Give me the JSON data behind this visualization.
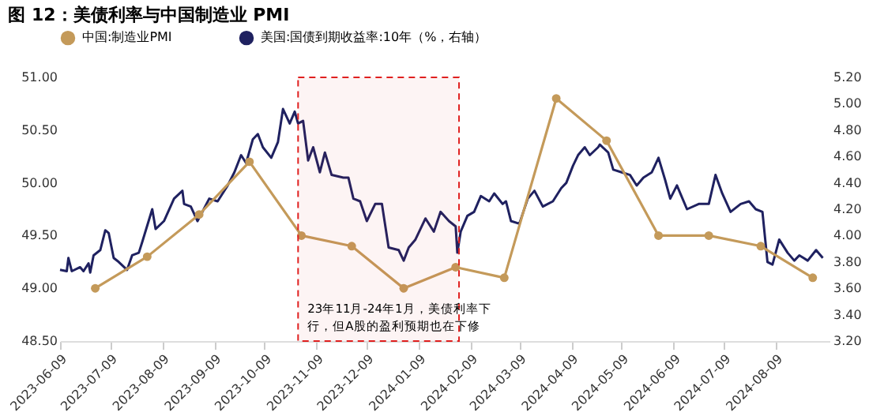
{
  "chart_data": {
    "type": "line",
    "title": "图 12：美债利率与中国制造业 PMI",
    "xlim": [
      "2023-06-09",
      "2024-09-10"
    ],
    "xticks": [
      "2023-06-09",
      "2023-07-09",
      "2023-08-09",
      "2023-09-09",
      "2023-10-09",
      "2023-11-09",
      "2023-12-09",
      "2024-01-09",
      "2024-02-09",
      "2024-03-09",
      "2024-04-09",
      "2024-05-09",
      "2024-06-09",
      "2024-07-09",
      "2024-08-09"
    ],
    "ylim": [
      48.5,
      51.0
    ],
    "yticks": [
      {
        "value": 48.5,
        "label": "48.50"
      },
      {
        "value": 49.0,
        "label": "49.00"
      },
      {
        "value": 49.5,
        "label": "49.50"
      },
      {
        "value": 50.0,
        "label": "50.00"
      },
      {
        "value": 50.5,
        "label": "50.50"
      },
      {
        "value": 51.0,
        "label": "51.00"
      }
    ],
    "y2lim": [
      3.2,
      5.2
    ],
    "y2ticks": [
      {
        "value": 3.2,
        "label": "3.20"
      },
      {
        "value": 3.4,
        "label": "3.40"
      },
      {
        "value": 3.6,
        "label": "3.60"
      },
      {
        "value": 3.8,
        "label": "3.80"
      },
      {
        "value": 4.0,
        "label": "4.00"
      },
      {
        "value": 4.2,
        "label": "4.20"
      },
      {
        "value": 4.4,
        "label": "4.40"
      },
      {
        "value": 4.6,
        "label": "4.60"
      },
      {
        "value": 4.8,
        "label": "4.80"
      },
      {
        "value": 5.0,
        "label": "5.00"
      },
      {
        "value": 5.2,
        "label": "5.20"
      }
    ],
    "legend": "top",
    "grid": false,
    "series": [
      {
        "name": "中国:制造业PMI",
        "color": "#c49a5a",
        "marker": "circle",
        "x": [
          "2023-06-30",
          "2023-07-31",
          "2023-08-31",
          "2023-09-30",
          "2023-10-31",
          "2023-11-30",
          "2023-12-31",
          "2024-01-31",
          "2024-02-29",
          "2024-03-31",
          "2024-04-30",
          "2024-05-31",
          "2024-06-30",
          "2024-07-31",
          "2024-08-31"
        ],
        "values": [
          49.0,
          49.3,
          49.7,
          50.2,
          49.5,
          49.4,
          49.0,
          49.2,
          49.1,
          50.8,
          50.4,
          49.5,
          49.5,
          49.4,
          49.1
        ]
      },
      {
        "name": "美国:国债到期收益率:10年（%，右轴）",
        "color": "#1f2160",
        "axis": "y2",
        "marker": "none",
        "x": [
          "2023-06-09",
          "2023-06-13",
          "2023-06-14",
          "2023-06-16",
          "2023-06-21",
          "2023-06-23",
          "2023-06-26",
          "2023-06-27",
          "2023-06-29",
          "2023-07-03",
          "2023-07-06",
          "2023-07-08",
          "2023-07-11",
          "2023-07-14",
          "2023-07-19",
          "2023-07-22",
          "2023-07-26",
          "2023-07-28",
          "2023-08-03",
          "2023-08-05",
          "2023-08-10",
          "2023-08-16",
          "2023-08-21",
          "2023-08-22",
          "2023-08-26",
          "2023-08-30",
          "2023-09-06",
          "2023-09-11",
          "2023-09-17",
          "2023-09-21",
          "2023-09-25",
          "2023-09-28",
          "2023-10-02",
          "2023-10-05",
          "2023-10-08",
          "2023-10-13",
          "2023-10-17",
          "2023-10-20",
          "2023-10-24",
          "2023-10-27",
          "2023-10-29",
          "2023-11-01",
          "2023-11-04",
          "2023-11-07",
          "2023-11-11",
          "2023-11-14",
          "2023-11-18",
          "2023-11-25",
          "2023-11-28",
          "2023-12-01",
          "2023-12-05",
          "2023-12-09",
          "2023-12-14",
          "2023-12-18",
          "2023-12-22",
          "2023-12-28",
          "2023-12-31",
          "2024-01-03",
          "2024-01-07",
          "2024-01-13",
          "2024-01-18",
          "2024-01-22",
          "2024-01-27",
          "2024-01-31",
          "2024-02-01",
          "2024-02-03",
          "2024-02-07",
          "2024-02-11",
          "2024-02-15",
          "2024-02-20",
          "2024-02-23",
          "2024-02-28",
          "2024-03-01",
          "2024-03-04",
          "2024-03-09",
          "2024-03-14",
          "2024-03-18",
          "2024-03-23",
          "2024-03-29",
          "2024-04-03",
          "2024-04-06",
          "2024-04-10",
          "2024-04-13",
          "2024-04-17",
          "2024-04-20",
          "2024-04-25",
          "2024-04-26",
          "2024-05-01",
          "2024-05-04",
          "2024-05-09",
          "2024-05-14",
          "2024-05-18",
          "2024-05-22",
          "2024-05-27",
          "2024-05-31",
          "2024-06-04",
          "2024-06-07",
          "2024-06-11",
          "2024-06-17",
          "2024-06-24",
          "2024-06-30",
          "2024-07-04",
          "2024-07-08",
          "2024-07-13",
          "2024-07-19",
          "2024-07-24",
          "2024-07-28",
          "2024-08-01",
          "2024-08-04",
          "2024-08-07",
          "2024-08-11",
          "2024-08-16",
          "2024-08-20",
          "2024-08-23",
          "2024-08-28",
          "2024-09-02",
          "2024-09-06"
        ],
        "values": [
          3.74,
          3.73,
          3.83,
          3.73,
          3.76,
          3.73,
          3.79,
          3.72,
          3.85,
          3.89,
          4.04,
          4.02,
          3.83,
          3.8,
          3.74,
          3.85,
          3.87,
          3.95,
          4.2,
          4.05,
          4.11,
          4.28,
          4.34,
          4.24,
          4.22,
          4.11,
          4.28,
          4.26,
          4.38,
          4.48,
          4.61,
          4.55,
          4.73,
          4.77,
          4.67,
          4.59,
          4.71,
          4.96,
          4.85,
          4.94,
          4.85,
          4.87,
          4.57,
          4.67,
          4.48,
          4.63,
          4.46,
          4.44,
          4.44,
          4.28,
          4.26,
          4.11,
          4.24,
          4.24,
          3.91,
          3.89,
          3.81,
          3.91,
          3.97,
          4.13,
          4.03,
          4.18,
          4.11,
          4.07,
          3.87,
          4.03,
          4.15,
          4.18,
          4.3,
          4.26,
          4.32,
          4.24,
          4.26,
          4.11,
          4.09,
          4.28,
          4.34,
          4.22,
          4.26,
          4.36,
          4.4,
          4.53,
          4.61,
          4.67,
          4.61,
          4.67,
          4.69,
          4.63,
          4.5,
          4.48,
          4.46,
          4.38,
          4.44,
          4.48,
          4.59,
          4.42,
          4.28,
          4.38,
          4.2,
          4.24,
          4.24,
          4.46,
          4.32,
          4.18,
          4.24,
          4.26,
          4.2,
          4.18,
          3.8,
          3.78,
          3.97,
          3.87,
          3.81,
          3.85,
          3.81,
          3.89,
          3.83
        ]
      }
    ],
    "bands": [
      {
        "axis": "x",
        "from": "2023-10-29",
        "to": "2024-02-02",
        "color": "#e0201f",
        "label": "23年11月-24年1月，美债利率下行，但A股的盈利预期也在下修"
      }
    ]
  }
}
